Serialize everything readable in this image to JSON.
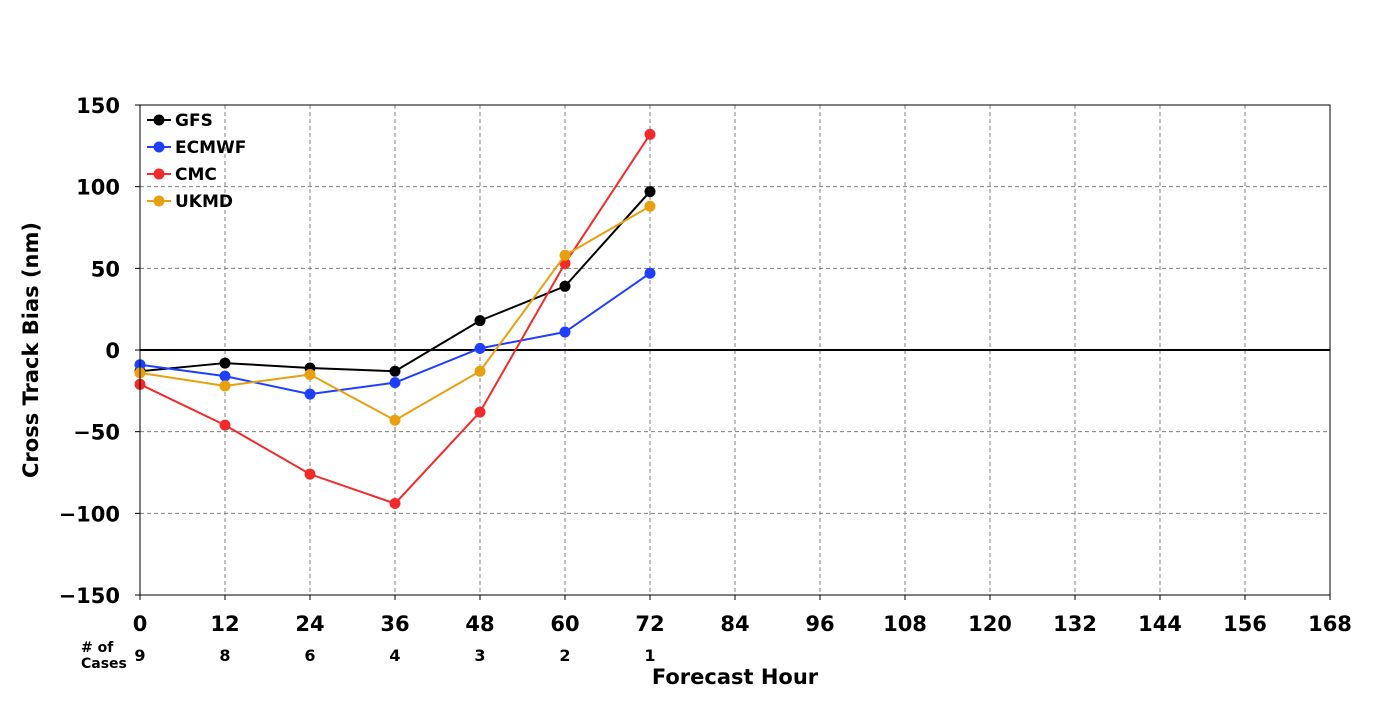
{
  "chart_data": {
    "type": "line",
    "xlabel": "Forecast Hour",
    "ylabel": "Cross Track Bias (nm)",
    "xlim": [
      0,
      168
    ],
    "ylim": [
      -150,
      150
    ],
    "xticks": [
      0,
      12,
      24,
      36,
      48,
      60,
      72,
      84,
      96,
      108,
      120,
      132,
      144,
      156,
      168
    ],
    "yticks": [
      -150,
      -100,
      -50,
      0,
      50,
      100,
      150
    ],
    "ytick_labels": [
      "−150",
      "−100",
      "−50",
      "0",
      "50",
      "100",
      "150"
    ],
    "grid": true,
    "legend_position": "upper-left",
    "x": [
      0,
      12,
      24,
      36,
      48,
      60,
      72
    ],
    "series": [
      {
        "name": "GFS",
        "color": "#000000",
        "values": [
          -13,
          -8,
          -11,
          -13,
          18,
          39,
          97
        ]
      },
      {
        "name": "ECMWF",
        "color": "#1f3fff",
        "values": [
          -9,
          -16,
          -27,
          -20,
          1,
          11,
          47
        ]
      },
      {
        "name": "CMC",
        "color": "#f22a2a",
        "values": [
          -21,
          -46,
          -76,
          -94,
          -38,
          53,
          132
        ]
      },
      {
        "name": "UKMD",
        "color": "#e8a00f",
        "values": [
          -14,
          -22,
          -15,
          -43,
          -13,
          58,
          88
        ]
      }
    ],
    "cases": {
      "label_line1": "# of",
      "label_line2": "Cases",
      "counts": [
        "9",
        "8",
        "6",
        "4",
        "3",
        "2",
        "1"
      ]
    }
  }
}
